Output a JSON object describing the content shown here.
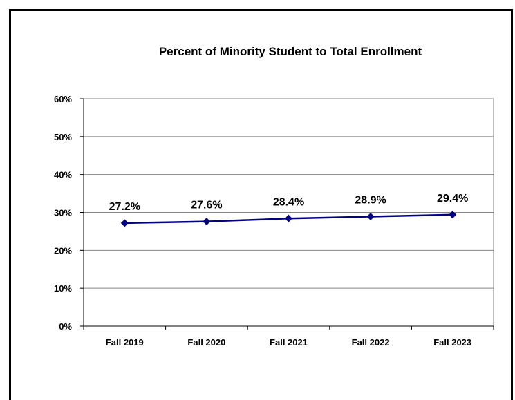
{
  "chart_data": {
    "type": "line",
    "title": "Percent of Minority Student to Total Enrollment",
    "xlabel": "",
    "ylabel": "",
    "categories": [
      "Fall 2019",
      "Fall 2020",
      "Fall 2021",
      "Fall 2022",
      "Fall 2023"
    ],
    "series": [
      {
        "values": [
          27.2,
          27.6,
          28.4,
          28.9,
          29.4
        ],
        "data_labels": [
          "27.2%",
          "27.6%",
          "28.4%",
          "28.9%",
          "29.4%"
        ],
        "color": "#000080",
        "marker": "diamond"
      }
    ],
    "ylim": [
      0,
      60
    ],
    "yticks": [
      0,
      10,
      20,
      30,
      40,
      50,
      60
    ],
    "ytick_labels": [
      "0%",
      "10%",
      "20%",
      "30%",
      "40%",
      "50%",
      "60%"
    ],
    "grid": true,
    "legend": "none"
  }
}
